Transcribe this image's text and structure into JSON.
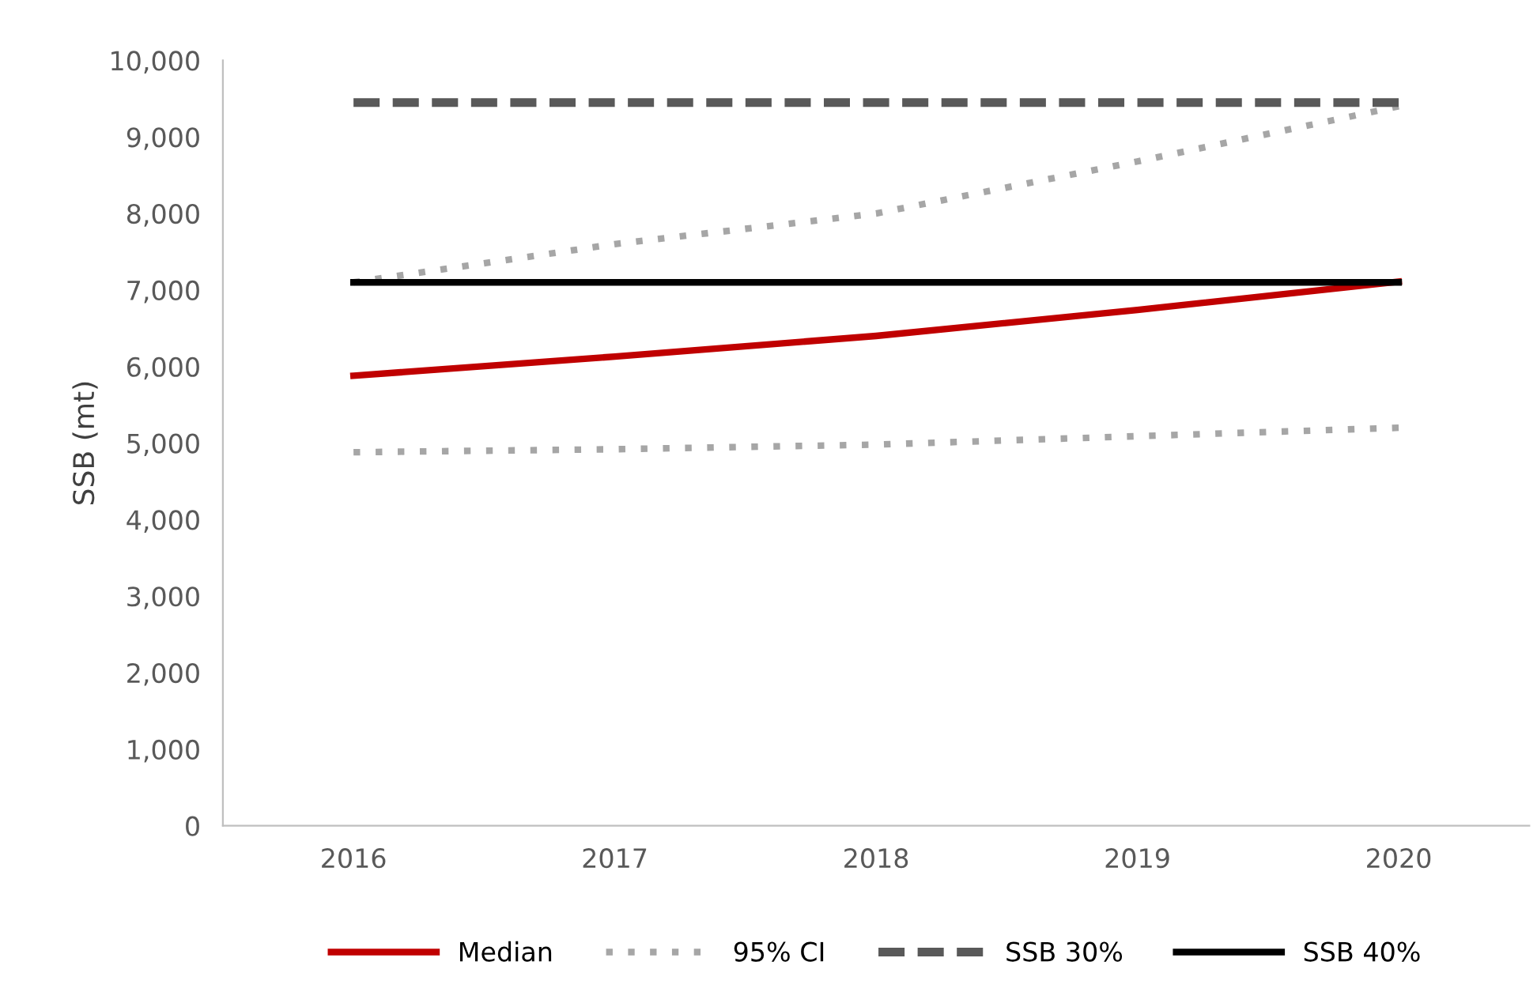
{
  "chart_data": {
    "type": "line",
    "ylabel": "SSB (mt)",
    "categories": [
      "2016",
      "2017",
      "2018",
      "2019",
      "2020"
    ],
    "series": [
      {
        "name": "Median",
        "color": "#c00000",
        "line_style": "solid",
        "values": [
          5880,
          6130,
          6400,
          6740,
          7110
        ]
      },
      {
        "name": "95% CI",
        "color": "#a6a6a6",
        "line_style": "dotted",
        "values": [
          7100,
          7600,
          8000,
          8680,
          9400
        ]
      },
      {
        "color": "#a6a6a6",
        "line_style": "dotted",
        "values": [
          4880,
          4920,
          4980,
          5090,
          5200
        ]
      },
      {
        "name": "SSB 30%",
        "color": "#595959",
        "line_style": "dashed",
        "values": [
          9450,
          9450,
          9450,
          9450,
          9450
        ]
      },
      {
        "name": "SSB 40%",
        "color": "#000000",
        "line_style": "solid",
        "values": [
          7100,
          7100,
          7100,
          7100,
          7100
        ]
      }
    ],
    "ylim": [
      0,
      10000
    ],
    "yticks": [
      {
        "value": 0,
        "label": "0"
      },
      {
        "value": 1000,
        "label": "1,000"
      },
      {
        "value": 2000,
        "label": "2,000"
      },
      {
        "value": 3000,
        "label": "3,000"
      },
      {
        "value": 4000,
        "label": "4,000"
      },
      {
        "value": 5000,
        "label": "5,000"
      },
      {
        "value": 6000,
        "label": "6,000"
      },
      {
        "value": 7000,
        "label": "7,000"
      },
      {
        "value": 8000,
        "label": "8,000"
      },
      {
        "value": 9000,
        "label": "9,000"
      },
      {
        "value": 10000,
        "label": "10,000"
      }
    ],
    "grid": false,
    "legend": "bottom",
    "marker": "none"
  }
}
